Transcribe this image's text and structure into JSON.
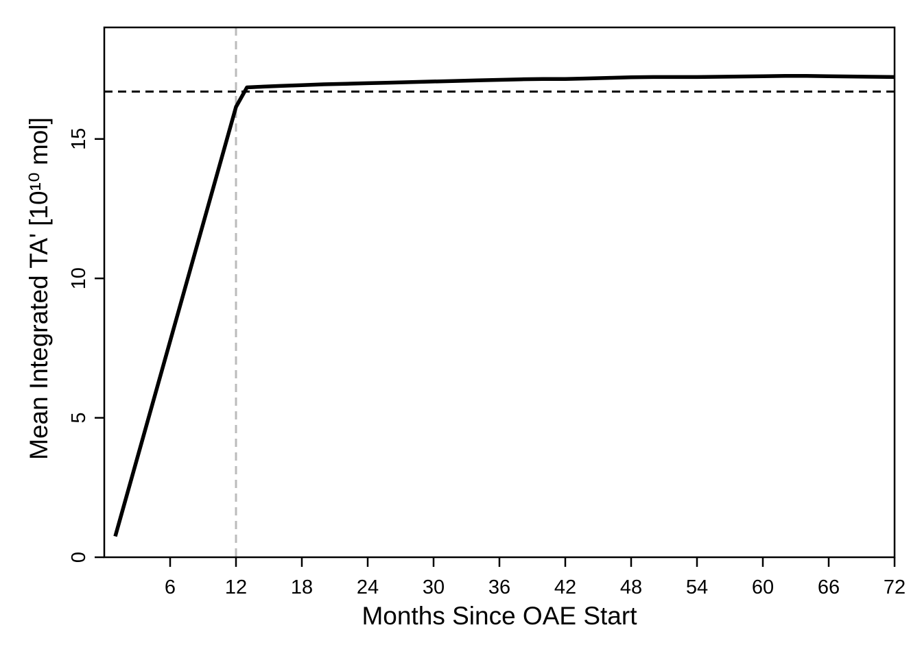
{
  "chart_data": {
    "type": "line",
    "title": "",
    "xlabel": "Months Since OAE Start",
    "ylabel": "Mean Integrated TA' [10¹⁰ mol]",
    "xlim": [
      0,
      72
    ],
    "ylim": [
      0,
      19
    ],
    "x_ticks": [
      6,
      12,
      18,
      24,
      30,
      36,
      42,
      48,
      54,
      60,
      66,
      72
    ],
    "y_ticks": [
      0,
      5,
      10,
      15
    ],
    "grid": false,
    "legend": "none",
    "series": [
      {
        "color": "#000000",
        "x": [
          1,
          12,
          13,
          14,
          16,
          18,
          20,
          22,
          24,
          26,
          28,
          30,
          32,
          34,
          36,
          38,
          40,
          42,
          44,
          46,
          48,
          50,
          52,
          54,
          56,
          58,
          60,
          62,
          64,
          66,
          68,
          70,
          72
        ],
        "values": [
          0.75,
          16.15,
          16.85,
          16.87,
          16.9,
          16.93,
          16.96,
          16.98,
          17.0,
          17.02,
          17.04,
          17.06,
          17.08,
          17.1,
          17.12,
          17.14,
          17.15,
          17.15,
          17.17,
          17.19,
          17.21,
          17.22,
          17.22,
          17.22,
          17.23,
          17.24,
          17.25,
          17.26,
          17.26,
          17.25,
          17.24,
          17.23,
          17.22
        ]
      }
    ],
    "reference_lines": [
      {
        "orientation": "horizontal",
        "value": 16.7,
        "style": "dashed",
        "color": "#000000"
      },
      {
        "orientation": "vertical",
        "value": 12,
        "style": "dashed",
        "color": "#bbbbbb"
      }
    ]
  }
}
